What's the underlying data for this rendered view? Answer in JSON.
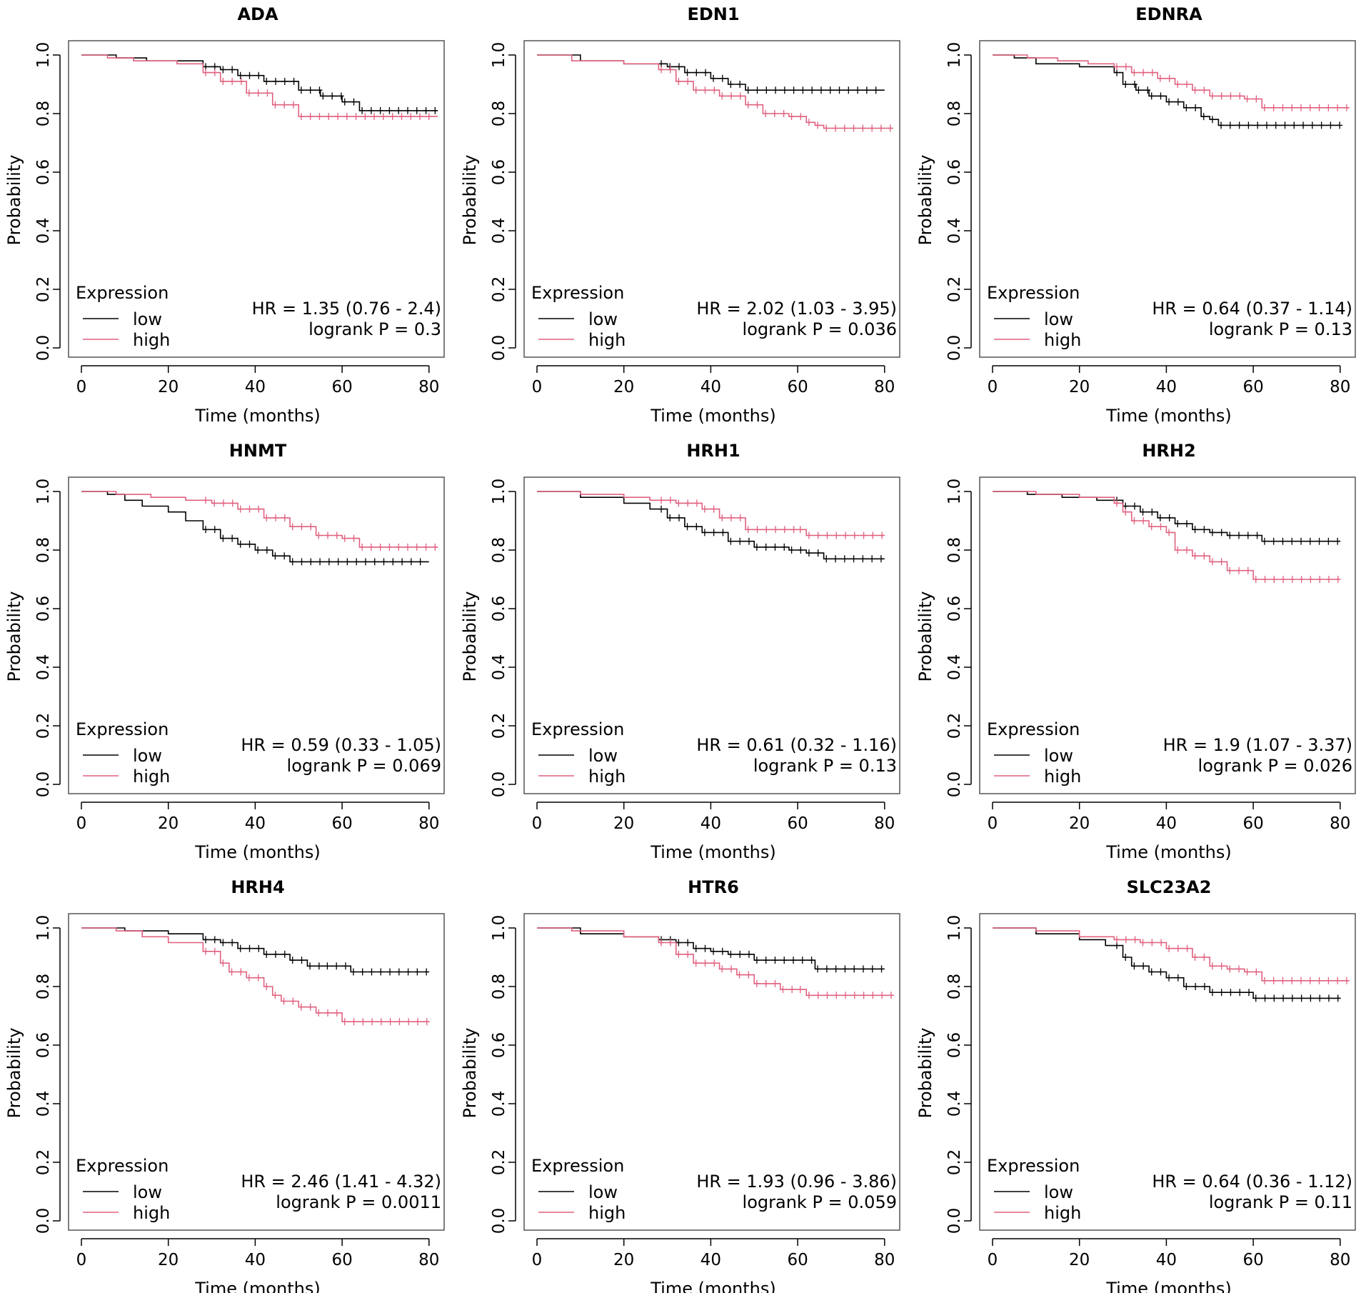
{
  "colors": {
    "low": "#000000",
    "high": "#e0607e",
    "axis": "#000000",
    "box": "#555555"
  },
  "labels": {
    "xlabel": "Time (months)",
    "ylabel": "Probability",
    "legend_title": "Expression",
    "legend_low": "low",
    "legend_high": "high",
    "xticks": [
      "0",
      "20",
      "40",
      "60",
      "80"
    ],
    "yticks": [
      "0.0",
      "0.2",
      "0.4",
      "0.6",
      "0.8",
      "1.0"
    ]
  },
  "chart_data": [
    {
      "type": "line",
      "title": "ADA",
      "xlabel": "Time (months)",
      "ylabel": "Probability",
      "xlim": [
        0,
        80
      ],
      "ylim": [
        0,
        1
      ],
      "hr": "HR = 1.35 (0.76 - 2.4)",
      "logrank": "logrank P = 0.3",
      "series": [
        {
          "name": "low",
          "x": [
            0,
            8,
            15,
            28,
            32,
            36,
            42,
            50,
            55,
            60,
            64,
            82
          ],
          "y": [
            1.0,
            0.99,
            0.98,
            0.96,
            0.95,
            0.93,
            0.91,
            0.88,
            0.86,
            0.84,
            0.81,
            0.81
          ]
        },
        {
          "name": "high",
          "x": [
            0,
            6,
            12,
            22,
            28,
            32,
            38,
            44,
            50,
            82
          ],
          "y": [
            1.0,
            0.99,
            0.98,
            0.97,
            0.94,
            0.91,
            0.87,
            0.83,
            0.79,
            0.79
          ]
        }
      ]
    },
    {
      "type": "line",
      "title": "EDN1",
      "xlabel": "Time (months)",
      "ylabel": "Probability",
      "xlim": [
        0,
        80
      ],
      "ylim": [
        0,
        1
      ],
      "hr": "HR = 2.02 (1.03 - 3.95)",
      "logrank": "logrank P = 0.036",
      "series": [
        {
          "name": "low",
          "x": [
            0,
            10,
            20,
            30,
            34,
            40,
            44,
            48,
            80
          ],
          "y": [
            1.0,
            0.98,
            0.97,
            0.96,
            0.94,
            0.92,
            0.9,
            0.88,
            0.88
          ]
        },
        {
          "name": "high",
          "x": [
            0,
            8,
            20,
            28,
            32,
            36,
            42,
            48,
            52,
            58,
            62,
            64,
            66,
            82
          ],
          "y": [
            1.0,
            0.98,
            0.97,
            0.95,
            0.91,
            0.88,
            0.86,
            0.83,
            0.8,
            0.79,
            0.77,
            0.76,
            0.75,
            0.75
          ]
        }
      ]
    },
    {
      "type": "line",
      "title": "EDNRA",
      "xlabel": "Time (months)",
      "ylabel": "Probability",
      "xlim": [
        0,
        80
      ],
      "ylim": [
        0,
        1
      ],
      "hr": "HR = 0.64 (0.37 - 1.14)",
      "logrank": "logrank P = 0.13",
      "series": [
        {
          "name": "low",
          "x": [
            0,
            5,
            10,
            20,
            28,
            30,
            33,
            36,
            40,
            44,
            48,
            50,
            52,
            80
          ],
          "y": [
            1.0,
            0.99,
            0.97,
            0.96,
            0.94,
            0.9,
            0.88,
            0.86,
            0.84,
            0.82,
            0.79,
            0.78,
            0.76,
            0.76
          ]
        },
        {
          "name": "high",
          "x": [
            0,
            8,
            15,
            22,
            28,
            32,
            38,
            42,
            46,
            50,
            58,
            62,
            82
          ],
          "y": [
            1.0,
            0.99,
            0.98,
            0.97,
            0.96,
            0.94,
            0.92,
            0.9,
            0.88,
            0.86,
            0.85,
            0.82,
            0.82
          ]
        }
      ]
    },
    {
      "type": "line",
      "title": "HNMT",
      "xlabel": "Time (months)",
      "ylabel": "Probability",
      "xlim": [
        0,
        80
      ],
      "ylim": [
        0,
        1
      ],
      "hr": "HR = 0.59 (0.33 - 1.05)",
      "logrank": "logrank P = 0.069",
      "series": [
        {
          "name": "low",
          "x": [
            0,
            6,
            10,
            14,
            20,
            24,
            28,
            32,
            36,
            40,
            44,
            48,
            80
          ],
          "y": [
            1.0,
            0.99,
            0.97,
            0.95,
            0.93,
            0.9,
            0.87,
            0.84,
            0.82,
            0.8,
            0.78,
            0.76,
            0.76
          ]
        },
        {
          "name": "high",
          "x": [
            0,
            8,
            16,
            24,
            30,
            36,
            42,
            48,
            54,
            60,
            64,
            82
          ],
          "y": [
            1.0,
            0.99,
            0.98,
            0.97,
            0.96,
            0.94,
            0.91,
            0.88,
            0.85,
            0.84,
            0.81,
            0.81
          ]
        }
      ]
    },
    {
      "type": "line",
      "title": "HRH1",
      "xlabel": "Time (months)",
      "ylabel": "Probability",
      "xlim": [
        0,
        80
      ],
      "ylim": [
        0,
        1
      ],
      "hr": "HR = 0.61 (0.32 - 1.16)",
      "logrank": "logrank P = 0.13",
      "series": [
        {
          "name": "low",
          "x": [
            0,
            10,
            20,
            26,
            30,
            34,
            38,
            44,
            50,
            58,
            62,
            66,
            80
          ],
          "y": [
            1.0,
            0.98,
            0.96,
            0.94,
            0.91,
            0.88,
            0.86,
            0.83,
            0.81,
            0.8,
            0.79,
            0.77,
            0.77
          ]
        },
        {
          "name": "high",
          "x": [
            0,
            10,
            20,
            26,
            32,
            38,
            42,
            48,
            60,
            62,
            80
          ],
          "y": [
            1.0,
            0.99,
            0.98,
            0.97,
            0.96,
            0.94,
            0.91,
            0.87,
            0.87,
            0.85,
            0.85
          ]
        }
      ]
    },
    {
      "type": "line",
      "title": "HRH2",
      "xlabel": "Time (months)",
      "ylabel": "Probability",
      "xlim": [
        0,
        80
      ],
      "ylim": [
        0,
        1
      ],
      "hr": "HR = 1.9 (1.07 - 3.37)",
      "logrank": "logrank P = 0.026",
      "series": [
        {
          "name": "low",
          "x": [
            0,
            8,
            16,
            24,
            30,
            34,
            38,
            42,
            46,
            50,
            54,
            62,
            80
          ],
          "y": [
            1.0,
            0.99,
            0.98,
            0.97,
            0.95,
            0.93,
            0.91,
            0.89,
            0.87,
            0.86,
            0.85,
            0.83,
            0.83
          ]
        },
        {
          "name": "high",
          "x": [
            0,
            10,
            20,
            28,
            30,
            32,
            36,
            40,
            42,
            46,
            50,
            54,
            60,
            80
          ],
          "y": [
            1.0,
            0.99,
            0.98,
            0.96,
            0.93,
            0.9,
            0.88,
            0.86,
            0.8,
            0.78,
            0.76,
            0.73,
            0.7,
            0.7
          ]
        }
      ]
    },
    {
      "type": "line",
      "title": "HRH4",
      "xlabel": "Time (months)",
      "ylabel": "Probability",
      "xlim": [
        0,
        80
      ],
      "ylim": [
        0,
        1
      ],
      "hr": "HR = 2.46 (1.41 - 4.32)",
      "logrank": "logrank P = 0.0011",
      "series": [
        {
          "name": "low",
          "x": [
            0,
            10,
            20,
            28,
            32,
            36,
            42,
            48,
            52,
            56,
            62,
            80
          ],
          "y": [
            1.0,
            0.99,
            0.98,
            0.96,
            0.95,
            0.93,
            0.91,
            0.89,
            0.87,
            0.87,
            0.85,
            0.85
          ]
        },
        {
          "name": "high",
          "x": [
            0,
            8,
            14,
            20,
            28,
            32,
            34,
            38,
            42,
            44,
            46,
            50,
            54,
            60,
            80
          ],
          "y": [
            1.0,
            0.99,
            0.97,
            0.95,
            0.92,
            0.88,
            0.85,
            0.83,
            0.8,
            0.77,
            0.75,
            0.73,
            0.71,
            0.68,
            0.68
          ]
        }
      ]
    },
    {
      "type": "line",
      "title": "HTR6",
      "xlabel": "Time (months)",
      "ylabel": "Probability",
      "xlim": [
        0,
        80
      ],
      "ylim": [
        0,
        1
      ],
      "hr": "HR = 1.93 (0.96 - 3.86)",
      "logrank": "logrank P = 0.059",
      "series": [
        {
          "name": "low",
          "x": [
            0,
            10,
            20,
            28,
            32,
            36,
            40,
            44,
            50,
            64,
            80
          ],
          "y": [
            1.0,
            0.98,
            0.97,
            0.96,
            0.95,
            0.93,
            0.92,
            0.91,
            0.89,
            0.86,
            0.86
          ]
        },
        {
          "name": "high",
          "x": [
            0,
            8,
            20,
            28,
            32,
            36,
            42,
            46,
            50,
            56,
            60,
            62,
            82
          ],
          "y": [
            1.0,
            0.99,
            0.97,
            0.95,
            0.91,
            0.88,
            0.86,
            0.84,
            0.81,
            0.79,
            0.79,
            0.77,
            0.77
          ]
        }
      ]
    },
    {
      "type": "line",
      "title": "SLC23A2",
      "xlabel": "Time (months)",
      "ylabel": "Probability",
      "xlim": [
        0,
        80
      ],
      "ylim": [
        0,
        1
      ],
      "hr": "HR = 0.64 (0.36 - 1.12)",
      "logrank": "logrank P = 0.11",
      "series": [
        {
          "name": "low",
          "x": [
            0,
            10,
            20,
            26,
            30,
            32,
            36,
            40,
            44,
            50,
            60,
            80
          ],
          "y": [
            1.0,
            0.98,
            0.96,
            0.94,
            0.9,
            0.87,
            0.85,
            0.83,
            0.8,
            0.78,
            0.76,
            0.76
          ]
        },
        {
          "name": "high",
          "x": [
            0,
            10,
            20,
            28,
            34,
            40,
            46,
            50,
            54,
            58,
            62,
            82
          ],
          "y": [
            1.0,
            0.99,
            0.97,
            0.96,
            0.95,
            0.93,
            0.9,
            0.87,
            0.86,
            0.85,
            0.82,
            0.82
          ]
        }
      ]
    }
  ]
}
